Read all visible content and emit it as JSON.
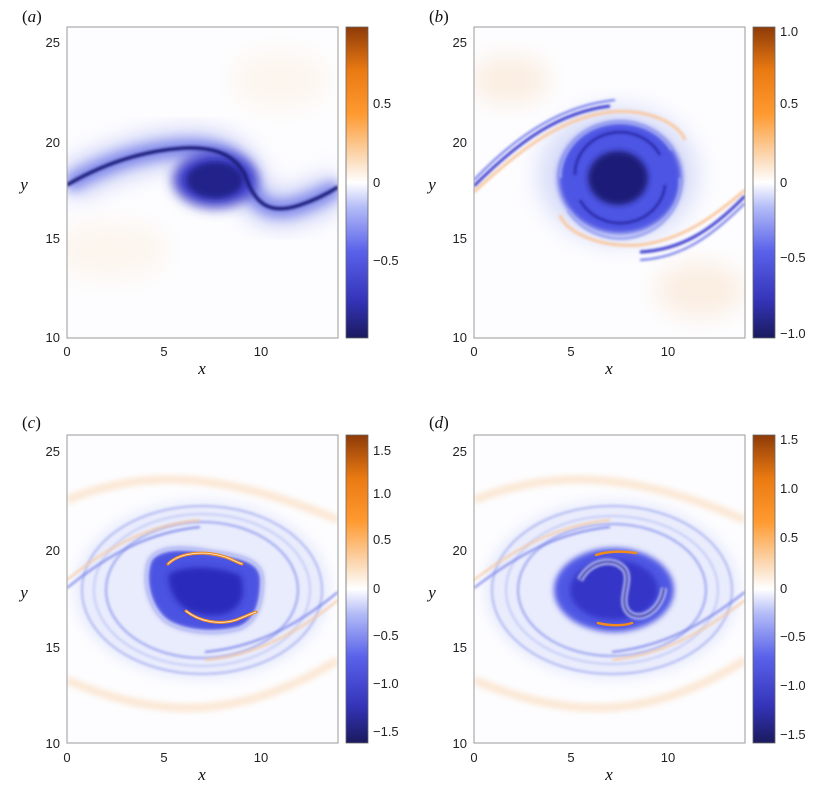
{
  "chart_data": [
    {
      "type": "heatmap",
      "panel_label": "(a)",
      "xlabel": "x",
      "ylabel": "y",
      "xlim": [
        0,
        14
      ],
      "ylim": [
        10,
        26
      ],
      "xticks": [
        0,
        5,
        10
      ],
      "yticks": [
        10,
        15,
        20,
        25
      ],
      "colorbar": {
        "range": [
          -0.95,
          0.95
        ],
        "ticks": [
          -0.5,
          0,
          0.5
        ],
        "tick_labels": [
          "−0.5",
          "0",
          "0.5"
        ]
      },
      "field": "single roll-up: thin negative-vorticity sheet wrapping into a core near (8, 18.2)",
      "core_center": [
        8.0,
        18.2
      ],
      "min_value": -0.95
    },
    {
      "type": "heatmap",
      "panel_label": "(b)",
      "xlabel": "x",
      "ylabel": "y",
      "xlim": [
        0,
        14
      ],
      "ylim": [
        10,
        26
      ],
      "xticks": [
        0,
        5,
        10
      ],
      "yticks": [
        10,
        15,
        20,
        25
      ],
      "colorbar": {
        "range": [
          -1.05,
          1.05
        ],
        "ticks": [
          -1.0,
          -0.5,
          0,
          0.5,
          1.0
        ],
        "tick_labels": [
          "−1.0",
          "−0.5",
          "0",
          "0.5",
          "1.0"
        ]
      },
      "field": "vortex with spiral arms, weak positive filaments alongside the braids",
      "core_center": [
        7.3,
        18.6
      ],
      "min_value": -1.0
    },
    {
      "type": "heatmap",
      "panel_label": "(c)",
      "xlabel": "x",
      "ylabel": "y",
      "xlim": [
        0,
        14
      ],
      "ylim": [
        10,
        26
      ],
      "xticks": [
        0,
        5,
        10
      ],
      "yticks": [
        10,
        15,
        20,
        25
      ],
      "colorbar": {
        "range": [
          -1.65,
          1.65
        ],
        "ticks": [
          -1.5,
          -1.0,
          -0.5,
          0,
          0.5,
          1.0,
          1.5
        ],
        "tick_labels": [
          "−1.5",
          "−1.0",
          "−0.5",
          "0",
          "0.5",
          "1.0",
          "1.5"
        ]
      },
      "field": "elliptical vortex core with two positive filaments on its rim",
      "core_center": [
        7.3,
        18.3
      ],
      "min_value": -1.6
    },
    {
      "type": "heatmap",
      "panel_label": "(d)",
      "xlabel": "x",
      "ylabel": "y",
      "xlim": [
        0,
        14
      ],
      "ylim": [
        10,
        26
      ],
      "xticks": [
        0,
        5,
        10
      ],
      "yticks": [
        10,
        15,
        20,
        25
      ],
      "colorbar": {
        "range": [
          -1.6,
          1.6
        ],
        "ticks": [
          -1.5,
          -1.0,
          -0.5,
          0,
          0.5,
          1.0,
          1.5
        ],
        "tick_labels": [
          "−1.5",
          "−1.0",
          "−0.5",
          "0",
          "0.5",
          "1.0",
          "1.5"
        ]
      },
      "field": "vortex core with interior S-shaped structure and short positive filaments",
      "core_center": [
        7.6,
        18.2
      ],
      "min_value": -1.5
    }
  ],
  "colormap": {
    "negative_max": "#1a1a6e",
    "negative_mid": "#4040e0",
    "zero": "#ffffff",
    "positive_mid": "#ff8c1a",
    "positive_max": "#8c3a0a"
  }
}
